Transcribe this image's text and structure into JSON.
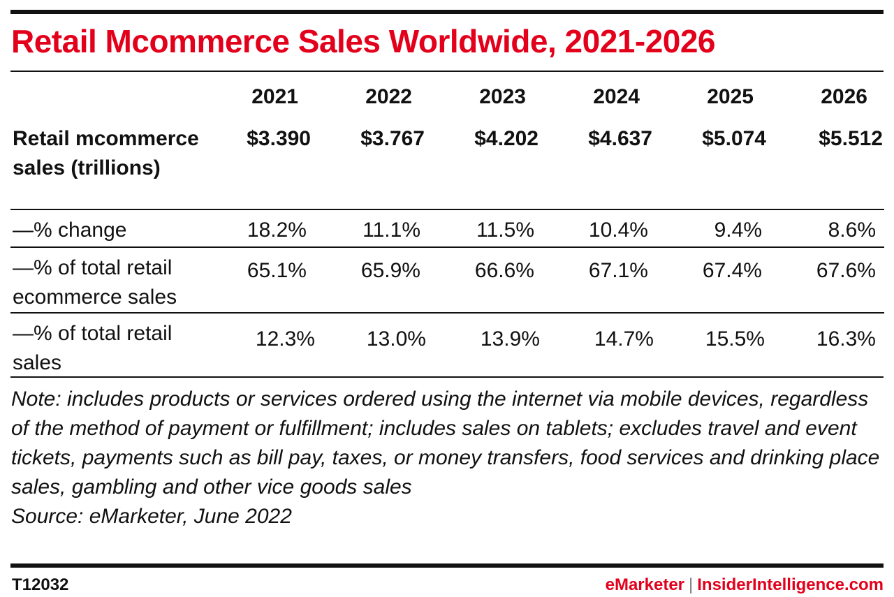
{
  "title": "Retail Mcommerce Sales Worldwide, 2021-2026",
  "chart_data": {
    "type": "table",
    "title": "Retail Mcommerce Sales Worldwide, 2021-2026",
    "columns": [
      "2021",
      "2022",
      "2023",
      "2024",
      "2025",
      "2026"
    ],
    "rows": [
      {
        "label": "Retail mcommerce sales (trillions)",
        "values": [
          "$3.390",
          "$3.767",
          "$4.202",
          "$4.637",
          "$5.074",
          "$5.512"
        ]
      },
      {
        "label": "—% change",
        "values": [
          "18.2%",
          "11.1%",
          "11.5%",
          "10.4%",
          "9.4%",
          "8.6%"
        ]
      },
      {
        "label": "—% of total retail ecommerce sales",
        "values": [
          "65.1%",
          "65.9%",
          "66.6%",
          "67.1%",
          "67.4%",
          "67.6%"
        ]
      },
      {
        "label": "—% of total retail sales",
        "values": [
          "12.3%",
          "13.0%",
          "13.9%",
          "14.7%",
          "15.5%",
          "16.3%"
        ]
      }
    ]
  },
  "note": "Note: includes products or services ordered using the internet via mobile devices, regardless of the method of payment or fulfillment; includes sales on tablets; excludes travel and event tickets, payments such as bill pay, taxes, or money transfers, food services and drinking place sales, gambling and other vice goods sales",
  "source": "Source: eMarketer, June 2022",
  "footer": {
    "id": "T12032",
    "brand_left": "eMarketer",
    "separator": "|",
    "brand_right": "InsiderIntelligence.com"
  },
  "colors": {
    "accent": "#e3001b",
    "rule": "#111111"
  }
}
